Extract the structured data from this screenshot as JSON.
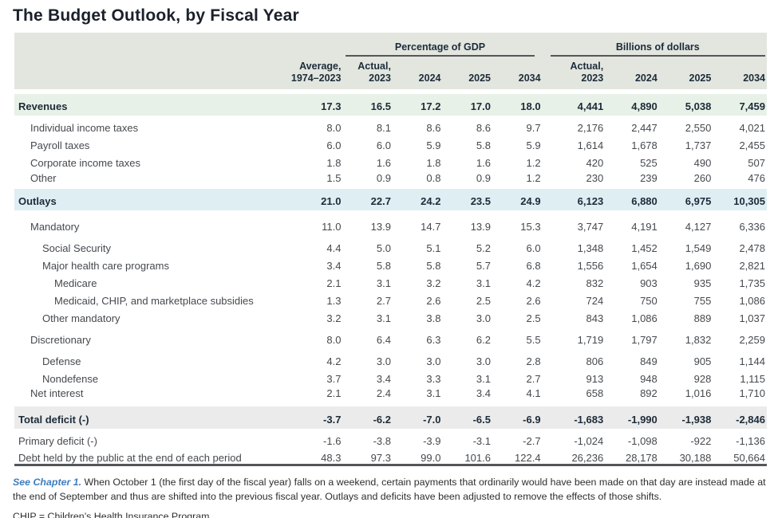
{
  "title": "The Budget Outlook, by Fiscal Year",
  "table": {
    "group_headers": [
      "Percentage of GDP",
      "Billions of dollars"
    ],
    "column_headers": [
      [],
      [
        "Average,",
        "1974–2023"
      ],
      [
        "Actual,",
        "2023"
      ],
      [
        "2024"
      ],
      [
        "2025"
      ],
      [
        "2034"
      ],
      [
        "Actual,",
        "2023"
      ],
      [
        "2024"
      ],
      [
        "2025"
      ],
      [
        "2034"
      ]
    ],
    "rows": [
      {
        "label": "Revenues",
        "indent": 0,
        "band": "green",
        "gap": false,
        "values": [
          "17.3",
          "16.5",
          "17.2",
          "17.0",
          "18.0",
          "4,441",
          "4,890",
          "5,038",
          "7,459"
        ]
      },
      {
        "label": "Individual income taxes",
        "indent": 1,
        "band": null,
        "gap": false,
        "values": [
          "8.0",
          "8.1",
          "8.6",
          "8.6",
          "9.7",
          "2,176",
          "2,447",
          "2,550",
          "4,021"
        ]
      },
      {
        "label": "Payroll taxes",
        "indent": 1,
        "band": null,
        "gap": false,
        "values": [
          "6.0",
          "6.0",
          "5.9",
          "5.8",
          "5.9",
          "1,614",
          "1,678",
          "1,737",
          "2,455"
        ]
      },
      {
        "label": "Corporate income taxes",
        "indent": 1,
        "band": null,
        "gap": false,
        "values": [
          "1.8",
          "1.6",
          "1.8",
          "1.6",
          "1.2",
          "420",
          "525",
          "490",
          "507"
        ]
      },
      {
        "label": "Other",
        "indent": 1,
        "band": null,
        "gap": false,
        "values": [
          "1.5",
          "0.9",
          "0.8",
          "0.9",
          "1.2",
          "230",
          "239",
          "260",
          "476"
        ]
      },
      {
        "label": "Outlays",
        "indent": 0,
        "band": "blue",
        "gap": false,
        "values": [
          "21.0",
          "22.7",
          "24.2",
          "23.5",
          "24.9",
          "6,123",
          "6,880",
          "6,975",
          "10,305"
        ]
      },
      {
        "label": "Mandatory",
        "indent": 1,
        "band": null,
        "gap": true,
        "values": [
          "11.0",
          "13.9",
          "14.7",
          "13.9",
          "15.3",
          "3,747",
          "4,191",
          "4,127",
          "6,336"
        ]
      },
      {
        "label": "Social Security",
        "indent": 2,
        "band": null,
        "gap": true,
        "values": [
          "4.4",
          "5.0",
          "5.1",
          "5.2",
          "6.0",
          "1,348",
          "1,452",
          "1,549",
          "2,478"
        ]
      },
      {
        "label": "Major health care programs",
        "indent": 2,
        "band": null,
        "gap": false,
        "values": [
          "3.4",
          "5.8",
          "5.8",
          "5.7",
          "6.8",
          "1,556",
          "1,654",
          "1,690",
          "2,821"
        ]
      },
      {
        "label": "Medicare",
        "indent": 3,
        "band": null,
        "gap": false,
        "values": [
          "2.1",
          "3.1",
          "3.2",
          "3.1",
          "4.2",
          "832",
          "903",
          "935",
          "1,735"
        ]
      },
      {
        "label": "Medicaid, CHIP, and marketplace subsidies",
        "indent": 3,
        "band": null,
        "gap": false,
        "values": [
          "1.3",
          "2.7",
          "2.6",
          "2.5",
          "2.6",
          "724",
          "750",
          "755",
          "1,086"
        ]
      },
      {
        "label": "Other mandatory",
        "indent": 2,
        "band": null,
        "gap": false,
        "values": [
          "3.2",
          "3.1",
          "3.8",
          "3.0",
          "2.5",
          "843",
          "1,086",
          "889",
          "1,037"
        ]
      },
      {
        "label": "Discretionary",
        "indent": 1,
        "band": null,
        "gap": true,
        "values": [
          "8.0",
          "6.4",
          "6.3",
          "6.2",
          "5.5",
          "1,719",
          "1,797",
          "1,832",
          "2,259"
        ]
      },
      {
        "label": "Defense",
        "indent": 2,
        "band": null,
        "gap": true,
        "values": [
          "4.2",
          "3.0",
          "3.0",
          "3.0",
          "2.8",
          "806",
          "849",
          "905",
          "1,144"
        ]
      },
      {
        "label": "Nondefense",
        "indent": 2,
        "band": null,
        "gap": false,
        "values": [
          "3.7",
          "3.4",
          "3.3",
          "3.1",
          "2.7",
          "913",
          "948",
          "928",
          "1,115"
        ]
      },
      {
        "label": "Net interest",
        "indent": 1,
        "band": null,
        "gap": false,
        "values": [
          "2.1",
          "2.4",
          "3.1",
          "3.4",
          "4.1",
          "658",
          "892",
          "1,016",
          "1,710"
        ]
      },
      {
        "label": "Total deficit (-)",
        "indent": 0,
        "band": "gray",
        "gap": false,
        "values": [
          "-3.7",
          "-6.2",
          "-7.0",
          "-6.5",
          "-6.9",
          "-1,683",
          "-1,990",
          "-1,938",
          "-2,846"
        ]
      },
      {
        "label": "Primary deficit (-)",
        "indent": 0,
        "band": null,
        "gap": false,
        "values": [
          "-1.6",
          "-3.8",
          "-3.9",
          "-3.1",
          "-2.7",
          "-1,024",
          "-1,098",
          "-922",
          "-1,136"
        ]
      },
      {
        "label": "Debt held by the public at the end of each period",
        "indent": 0,
        "band": null,
        "gap": false,
        "values": [
          "48.3",
          "97.3",
          "99.0",
          "101.6",
          "122.4",
          "26,236",
          "28,178",
          "30,188",
          "50,664"
        ]
      }
    ]
  },
  "footnotes": {
    "see_ref": "See Chapter 1.",
    "note1": "When October 1 (the first day of the fiscal year) falls on a weekend, certain payments that ordinarily would have been made on that day are instead made at the end of September and thus are shifted into the previous fiscal year. Outlays and deficits have been adjusted to remove the effects of those shifts.",
    "note2": "CHIP = Children’s Health Insurance Program."
  }
}
